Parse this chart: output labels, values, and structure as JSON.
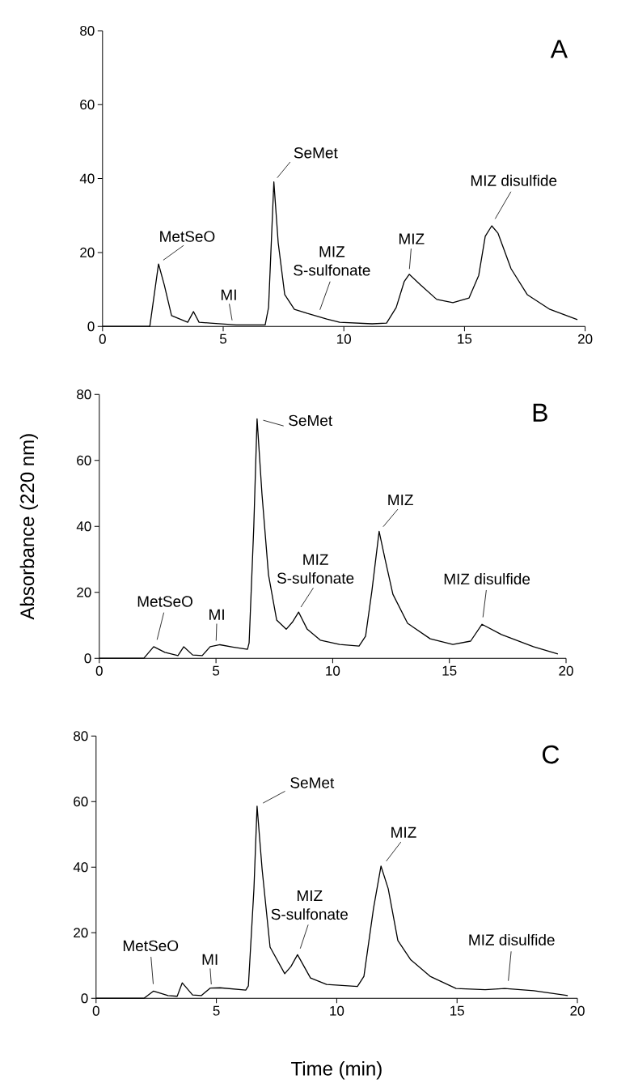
{
  "chart_data": [
    {
      "type": "line",
      "color": "#000000",
      "xlim": [
        0,
        20
      ],
      "ylim": [
        0,
        80
      ],
      "xticks": [
        0,
        5,
        10,
        15,
        20
      ],
      "yticks": [
        0,
        20,
        40,
        60,
        80
      ],
      "x": [
        0,
        1.96,
        2.32,
        2.56,
        2.86,
        3.53,
        3.77,
        4.0,
        4.46,
        5.54,
        6.74,
        6.88,
        7.1,
        7.28,
        7.55,
        7.95,
        8.49,
        9.29,
        9.83,
        11.17,
        11.77,
        12.17,
        12.5,
        12.71,
        13.18,
        13.85,
        14.52,
        15.19,
        15.59,
        15.86,
        16.13,
        16.39,
        16.93,
        17.6,
        18.54,
        19.68
      ],
      "values": [
        0,
        0,
        16.9,
        11.2,
        2.9,
        1.1,
        4.0,
        1.1,
        0.9,
        0.4,
        0.4,
        5.1,
        39.1,
        22.6,
        8.6,
        4.6,
        3.5,
        2.0,
        1.1,
        0.7,
        0.9,
        5.1,
        12.1,
        14.1,
        11.2,
        7.3,
        6.4,
        7.7,
        13.8,
        24.4,
        27.2,
        25.2,
        15.6,
        8.6,
        4.6,
        1.8
      ],
      "annotations": [
        "A",
        {
          "text": "MetSeO",
          "x": 2.3,
          "y": 16.9
        },
        {
          "text": "MI",
          "x": 5.4,
          "y": 0.5
        },
        {
          "text": "SeMet",
          "x": 7.1,
          "y": 39.1
        },
        {
          "text": "MIZ S-sulfonate",
          "x": 8.9,
          "y": 2.5
        },
        {
          "text": "MIZ",
          "x": 12.7,
          "y": 14.1
        },
        {
          "text": "MIZ disulfide",
          "x": 16.1,
          "y": 27.2
        }
      ]
    },
    {
      "type": "line",
      "color": "#000000",
      "xlim": [
        0,
        20
      ],
      "ylim": [
        0,
        80
      ],
      "xticks": [
        0,
        5,
        10,
        15,
        20
      ],
      "yticks": [
        0,
        20,
        40,
        60,
        80
      ],
      "ylabel": "Absorbance (220 nm)",
      "x": [
        0,
        1.91,
        2.33,
        2.81,
        3.37,
        3.62,
        4.0,
        4.41,
        4.75,
        5.17,
        5.72,
        6.35,
        6.42,
        6.62,
        6.76,
        6.97,
        7.25,
        7.6,
        8.01,
        8.29,
        8.54,
        8.91,
        9.47,
        10.3,
        11.13,
        11.41,
        11.68,
        11.99,
        12.24,
        12.58,
        13.21,
        14.18,
        15.15,
        15.91,
        16.4,
        17.23,
        18.6,
        19.65
      ],
      "values": [
        0,
        0,
        3.5,
        1.8,
        0.8,
        3.5,
        1.0,
        0.8,
        3.5,
        4.1,
        3.4,
        2.7,
        4.7,
        40.0,
        72.6,
        49.8,
        25.3,
        11.6,
        8.8,
        11.1,
        14.0,
        8.8,
        5.5,
        4.2,
        3.7,
        6.7,
        20.4,
        38.5,
        30.2,
        19.4,
        10.6,
        5.9,
        4.2,
        5.2,
        10.3,
        7.2,
        3.5,
        1.3
      ],
      "annotations": [
        "B",
        {
          "text": "MetSeO",
          "x": 2.4,
          "y": 3.5
        },
        {
          "text": "MI",
          "x": 5.0,
          "y": 4
        },
        {
          "text": "SeMet",
          "x": 6.8,
          "y": 72.6
        },
        {
          "text": "MIZ S-sulfonate",
          "x": 8.5,
          "y": 14
        },
        {
          "text": "MIZ",
          "x": 12.0,
          "y": 38.5
        },
        {
          "text": "MIZ disulfide",
          "x": 16.4,
          "y": 10.3
        }
      ]
    },
    {
      "type": "line",
      "color": "#000000",
      "xlim": [
        0,
        20
      ],
      "ylim": [
        0,
        80
      ],
      "xticks": [
        0,
        5,
        10,
        15,
        20
      ],
      "yticks": [
        0,
        20,
        40,
        60,
        80
      ],
      "xlabel": "Time (min)",
      "x": [
        0,
        1.99,
        2.39,
        2.99,
        3.37,
        3.58,
        4.01,
        4.37,
        4.74,
        5.15,
        6.22,
        6.33,
        6.56,
        6.69,
        6.9,
        7.23,
        7.84,
        8.1,
        8.37,
        8.91,
        9.58,
        10.86,
        11.13,
        11.53,
        11.84,
        12.14,
        12.54,
        13.08,
        13.88,
        14.96,
        16.17,
        16.98,
        18.19,
        19.6
      ],
      "values": [
        0,
        0,
        2.2,
        0.8,
        0.6,
        4.7,
        1.0,
        0.8,
        3.1,
        3.2,
        2.5,
        3.8,
        33.4,
        58.6,
        39.3,
        15.6,
        7.5,
        9.7,
        13.3,
        6.2,
        4.2,
        3.6,
        6.7,
        27.5,
        40.3,
        33.4,
        17.6,
        11.7,
        6.7,
        3.0,
        2.6,
        3.0,
        2.3,
        0.8
      ],
      "annotations": [
        "C",
        {
          "text": "MetSeO",
          "x": 2.4,
          "y": 2.2
        },
        {
          "text": "MI",
          "x": 4.8,
          "y": 3
        },
        {
          "text": "SeMet",
          "x": 6.7,
          "y": 58.6
        },
        {
          "text": "MIZ S-sulfonate",
          "x": 8.4,
          "y": 13.3
        },
        {
          "text": "MIZ",
          "x": 11.9,
          "y": 40.3
        },
        {
          "text": "MIZ disulfide",
          "x": 17.1,
          "y": 3
        }
      ]
    }
  ]
}
